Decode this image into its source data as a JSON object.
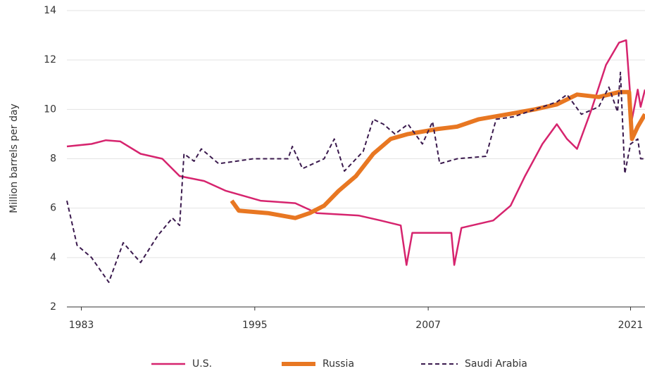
{
  "chart_data": {
    "type": "line",
    "ylabel": "Million barrels per day",
    "xlim": [
      1982,
      2022
    ],
    "xticks": [
      1983,
      1995,
      2007,
      2021
    ],
    "ylim": [
      2,
      14
    ],
    "yticks": [
      2,
      4,
      6,
      8,
      10,
      12,
      14
    ],
    "grid": true,
    "legend": "bottom",
    "series": [
      {
        "name": "U.S.",
        "color": "#d6246e",
        "style": "solid",
        "x": [
          1982,
          1983.7,
          1984.7,
          1985.7,
          1987.1,
          1988.6,
          1989.8,
          1991.5,
          1993.0,
          1995.4,
          1997.8,
          1999.3,
          2002.2,
          2003.7,
          2005.1,
          2005.5,
          2005.9,
          2008.6,
          2008.8,
          2009.3,
          2011.5,
          2012.7,
          2013.7,
          2014.9,
          2015.9,
          2016.6,
          2017.3,
          2018.3,
          2019.3,
          2020.2,
          2020.7,
          2021.1,
          2021.5,
          2021.7,
          2022
        ],
        "values": [
          8.5,
          8.6,
          8.75,
          8.7,
          8.2,
          8.0,
          7.3,
          7.1,
          6.7,
          6.3,
          6.2,
          5.8,
          5.7,
          5.5,
          5.3,
          3.7,
          5.0,
          5.0,
          3.7,
          5.2,
          5.5,
          6.1,
          7.3,
          8.6,
          9.4,
          8.8,
          8.4,
          10.0,
          11.8,
          12.7,
          12.8,
          9.6,
          10.8,
          10.1,
          10.8
        ]
      },
      {
        "name": "Russia",
        "color": "#e87722",
        "style": "thick",
        "x": [
          1993.4,
          1993.9,
          1995.9,
          1997.8,
          1998.8,
          1999.8,
          2000.8,
          2002.0,
          2003.2,
          2004.4,
          2005.6,
          2007.6,
          2009.0,
          2010.5,
          2012.5,
          2014.4,
          2015.9,
          2017.3,
          2018.8,
          2020.2,
          2020.9,
          2021.1,
          2021.5,
          2022
        ],
        "values": [
          6.3,
          5.9,
          5.8,
          5.6,
          5.8,
          6.1,
          6.7,
          7.3,
          8.2,
          8.8,
          9.0,
          9.2,
          9.3,
          9.6,
          9.8,
          10.0,
          10.2,
          10.6,
          10.5,
          10.7,
          10.7,
          8.8,
          9.3,
          9.8
        ]
      },
      {
        "name": "Saudi Arabia",
        "color": "#3b1a4e",
        "style": "dashed",
        "x": [
          1982,
          1982.7,
          1983.7,
          1984.9,
          1985.9,
          1987.1,
          1988.3,
          1989.3,
          1989.8,
          1990.1,
          1990.8,
          1991.3,
          1992.5,
          1994.9,
          1997.3,
          1997.6,
          1998.3,
          1999.8,
          2000.5,
          2001.2,
          2002.5,
          2003.2,
          2003.9,
          2004.7,
          2005.6,
          2006.6,
          2007.3,
          2007.8,
          2009.0,
          2011.0,
          2011.7,
          2012.9,
          2014.4,
          2015.9,
          2016.6,
          2017.6,
          2018.8,
          2019.5,
          2020.1,
          2020.3,
          2020.6,
          2021.0,
          2021.5,
          2021.7,
          2022
        ],
        "values": [
          6.3,
          4.5,
          4.0,
          3.0,
          4.6,
          3.8,
          4.9,
          5.6,
          5.3,
          8.2,
          7.9,
          8.4,
          7.8,
          8.0,
          8.0,
          8.5,
          7.6,
          8.0,
          8.8,
          7.5,
          8.3,
          9.6,
          9.4,
          9.0,
          9.4,
          8.6,
          9.5,
          7.8,
          8.0,
          8.1,
          9.6,
          9.7,
          10.0,
          10.3,
          10.6,
          9.8,
          10.1,
          10.9,
          9.9,
          11.5,
          7.4,
          8.6,
          8.8,
          8.0,
          8.0
        ]
      }
    ]
  }
}
